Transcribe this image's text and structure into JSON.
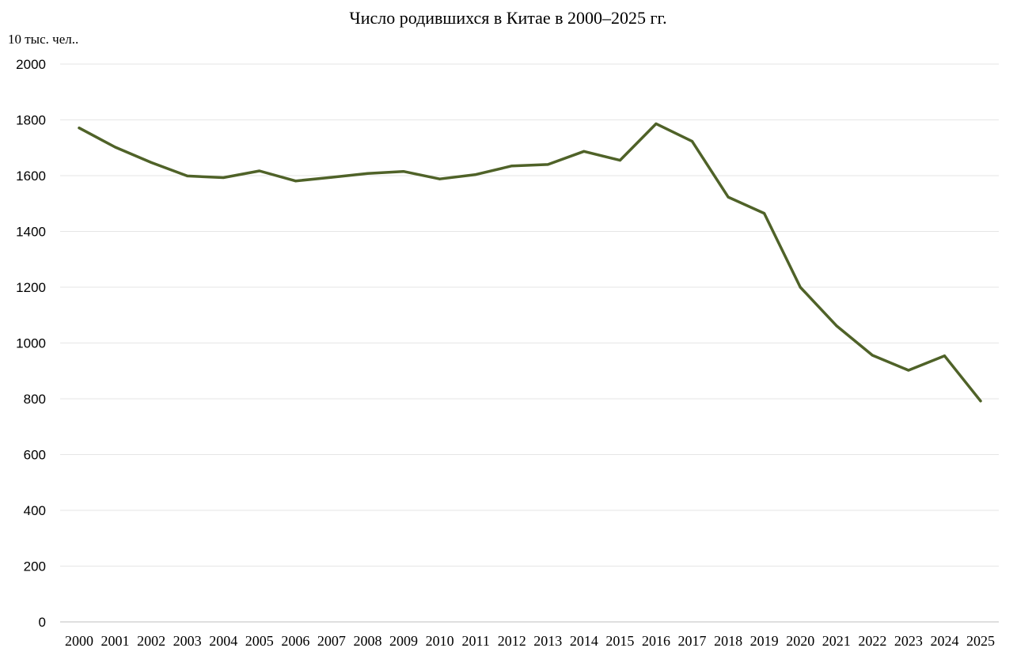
{
  "chart_data": {
    "type": "line",
    "title": "Число родившихся в Китае в 2000–2025 гг.",
    "ylabel": "10 тыс. чел..",
    "xlabel": "",
    "categories": [
      "2000",
      "2001",
      "2002",
      "2003",
      "2004",
      "2005",
      "2006",
      "2007",
      "2008",
      "2009",
      "2010",
      "2011",
      "2012",
      "2013",
      "2014",
      "2015",
      "2016",
      "2017",
      "2018",
      "2019",
      "2020",
      "2021",
      "2022",
      "2023",
      "2024",
      "2025"
    ],
    "series": [
      {
        "values": [
          1771,
          1702,
          1647,
          1599,
          1593,
          1617,
          1581,
          1594,
          1608,
          1615,
          1588,
          1604,
          1635,
          1640,
          1687,
          1655,
          1786,
          1723,
          1523,
          1465,
          1200,
          1062,
          956,
          902,
          954,
          792
        ],
        "color": "#4f6228"
      }
    ],
    "ylim": [
      0,
      2000
    ],
    "yticks": [
      0,
      200,
      400,
      600,
      800,
      1000,
      1200,
      1400,
      1600,
      1800,
      2000
    ],
    "grid": true,
    "legend": "none"
  }
}
